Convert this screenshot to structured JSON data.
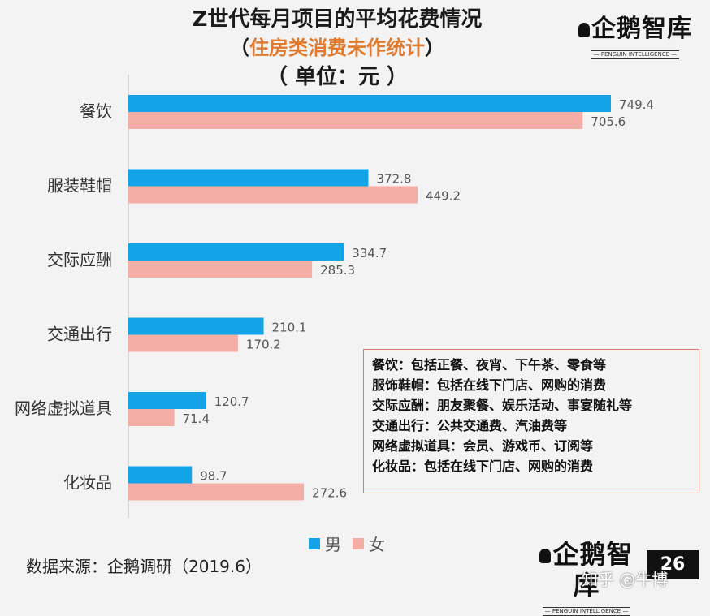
{
  "title": "Z世代每月项目的平均花费情况",
  "subtitle_open": "（",
  "subtitle_accent": "住房类消费未作统计",
  "subtitle_close": "）",
  "unit": "（ 单位：元 ）",
  "logo": {
    "text": "企鹅智库",
    "sub": "— PENGUIN INTELLIGENCE —"
  },
  "colors": {
    "male": "#12a4e6",
    "female": "#f4aea6",
    "background": "#f3f3f3",
    "accent": "#e07a2e"
  },
  "chart_data": {
    "type": "bar",
    "orientation": "horizontal",
    "categories": [
      "餐饮",
      "服装鞋帽",
      "交际应酬",
      "交通出行",
      "网络虚拟道具",
      "化妆品"
    ],
    "series": [
      {
        "name": "男",
        "values": [
          749.4,
          372.8,
          334.7,
          210.1,
          120.7,
          98.7
        ]
      },
      {
        "name": "女",
        "values": [
          705.6,
          449.2,
          285.3,
          170.2,
          71.4,
          272.6
        ]
      }
    ],
    "value_labels": {
      "男": [
        "749.4",
        "372.8",
        "334.7",
        "210.1",
        "120.7",
        "98.7"
      ],
      "女": [
        "705.6",
        "449.2",
        "285.3",
        "170.2",
        "71.4",
        "272.6"
      ]
    },
    "xlim": [
      0,
      800
    ],
    "grid": false,
    "legend_position": "bottom"
  },
  "notes": [
    "餐饮：包括正餐、夜宵、下午茶、零食等",
    "服饰鞋帽：包括在线下门店、网购的消费",
    "交际应酬：朋友聚餐、娱乐活动、事宴随礼等",
    "交通出行：公共交通费、汽油费等",
    "网络虚拟道具：会员、游戏币、订阅等",
    "化妆品：包括在线下门店、网购的消费"
  ],
  "legend": {
    "male": "男",
    "female": "女"
  },
  "source": "数据来源：企鹅调研（2019.6）",
  "page_number": "26",
  "watermark": "知乎 @牛博"
}
